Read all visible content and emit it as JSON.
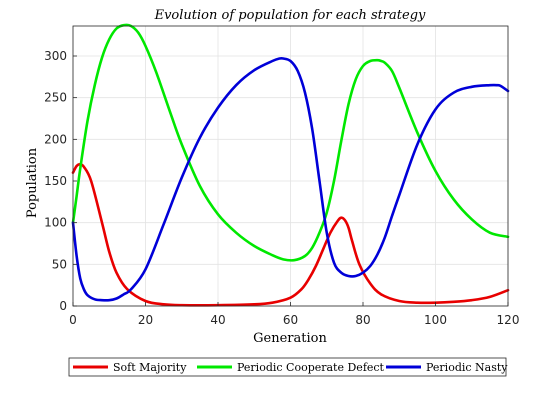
{
  "chart_data": {
    "type": "line",
    "title": "Evolution of population for each strategy",
    "xlabel": "Generation",
    "ylabel": "Population",
    "xlim": [
      0,
      120
    ],
    "ylim": [
      0,
      336
    ],
    "xticks": [
      0,
      20,
      40,
      60,
      80,
      100,
      120
    ],
    "yticks": [
      0,
      50,
      100,
      150,
      200,
      250,
      300
    ],
    "grid": true,
    "legend_position": "bottom-outside",
    "series": [
      {
        "name": "Soft Majority",
        "color": "#e80000",
        "x": [
          0,
          1,
          2,
          3,
          5,
          8,
          10,
          12,
          15,
          20,
          25,
          30,
          40,
          50,
          55,
          60,
          63,
          65,
          67,
          69,
          71,
          73,
          74,
          75,
          76,
          77,
          79,
          82,
          85,
          90,
          95,
          100,
          105,
          110,
          115,
          120
        ],
        "y": [
          160,
          168,
          170,
          167,
          150,
          100,
          65,
          40,
          20,
          6,
          2,
          1,
          1,
          2,
          4,
          10,
          20,
          32,
          48,
          68,
          88,
          102,
          106,
          103,
          94,
          78,
          50,
          27,
          14,
          6,
          4,
          4,
          5,
          7,
          11,
          19
        ]
      },
      {
        "name": "Periodic Cooperate Defect",
        "color": "#00e800",
        "x": [
          0,
          1,
          2,
          4,
          6,
          8,
          10,
          12,
          14,
          16,
          18,
          20,
          23,
          27,
          30,
          35,
          40,
          45,
          50,
          55,
          58,
          61,
          64,
          66,
          68,
          70,
          72,
          74,
          76,
          78,
          80,
          82,
          84,
          85,
          86,
          88,
          90,
          95,
          100,
          105,
          110,
          115,
          120
        ],
        "y": [
          100,
          132,
          165,
          222,
          265,
          298,
          320,
          333,
          337,
          336,
          328,
          312,
          280,
          230,
          194,
          144,
          110,
          88,
          72,
          61,
          56,
          55,
          60,
          70,
          88,
          112,
          150,
          198,
          242,
          272,
          288,
          294,
          295,
          294,
          292,
          282,
          262,
          208,
          162,
          128,
          104,
          88,
          83
        ]
      },
      {
        "name": "Periodic Nasty",
        "color": "#0000d8",
        "x": [
          0,
          1,
          2,
          3,
          4,
          6,
          8,
          10,
          12,
          14,
          16,
          20,
          25,
          30,
          35,
          40,
          45,
          50,
          55,
          57,
          58,
          60,
          62,
          64,
          66,
          68,
          70,
          72,
          74,
          76,
          78,
          80,
          82,
          84,
          86,
          88,
          90,
          95,
          100,
          105,
          110,
          115,
          117,
          118,
          120
        ],
        "y": [
          100,
          60,
          33,
          20,
          13,
          8,
          7,
          7,
          9,
          14,
          20,
          44,
          98,
          154,
          202,
          238,
          265,
          283,
          294,
          297,
          297,
          294,
          282,
          256,
          212,
          150,
          88,
          52,
          40,
          36,
          36,
          40,
          48,
          62,
          82,
          108,
          133,
          194,
          236,
          256,
          263,
          265,
          265,
          264,
          258
        ]
      }
    ]
  }
}
